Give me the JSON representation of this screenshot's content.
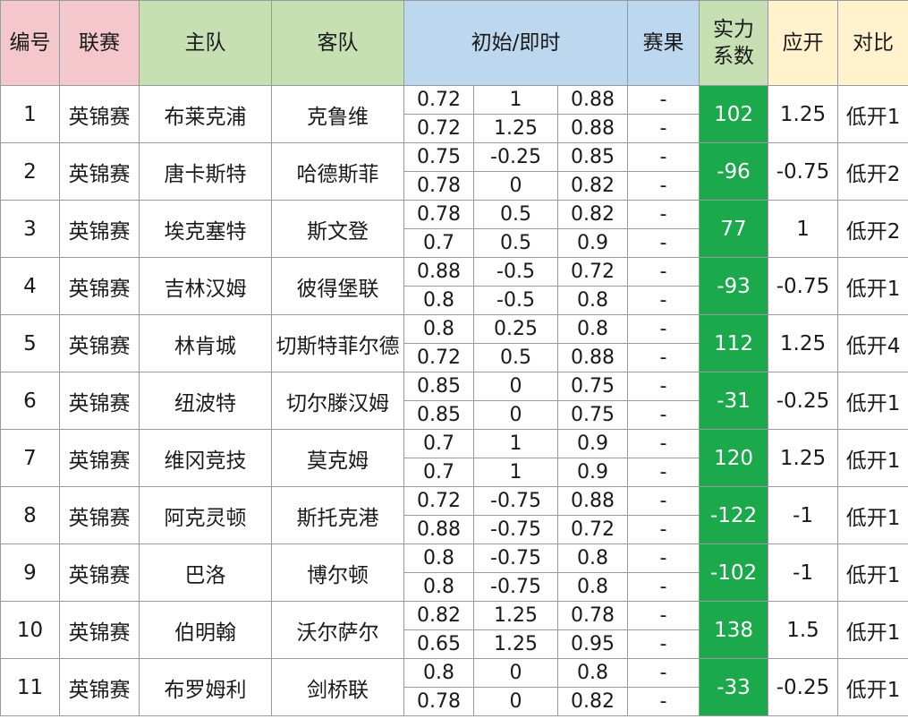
{
  "headers": {
    "id": "编号",
    "league": "联赛",
    "home": "主队",
    "away": "客队",
    "odds": "初始/即时",
    "result": "赛果",
    "strength_line1": "实力",
    "strength_line2": "系数",
    "expected": "应开",
    "compare": "对比"
  },
  "colors": {
    "header_pink": "#f4c7cc",
    "header_green": "#c6e0b4",
    "header_blue": "#bdd7ee",
    "header_cream": "#fff2cc",
    "strength_green": "#1ba94c"
  },
  "rows": [
    {
      "id": "1",
      "league": "英锦赛",
      "home": "布莱克浦",
      "away": "克鲁维",
      "initial": [
        "0.72",
        "1",
        "0.88"
      ],
      "live": [
        "0.72",
        "1.25",
        "0.88"
      ],
      "result": [
        "-",
        "-"
      ],
      "strength": "102",
      "expected": "1.25",
      "compare": "低开1"
    },
    {
      "id": "2",
      "league": "英锦赛",
      "home": "唐卡斯特",
      "away": "哈德斯菲",
      "initial": [
        "0.75",
        "-0.25",
        "0.85"
      ],
      "live": [
        "0.78",
        "0",
        "0.82"
      ],
      "result": [
        "-",
        "-"
      ],
      "strength": "-96",
      "expected": "-0.75",
      "compare": "低开2"
    },
    {
      "id": "3",
      "league": "英锦赛",
      "home": "埃克塞特",
      "away": "斯文登",
      "initial": [
        "0.78",
        "0.5",
        "0.82"
      ],
      "live": [
        "0.7",
        "0.5",
        "0.9"
      ],
      "result": [
        "-",
        "-"
      ],
      "strength": "77",
      "expected": "1",
      "compare": "低开2"
    },
    {
      "id": "4",
      "league": "英锦赛",
      "home": "吉林汉姆",
      "away": "彼得堡联",
      "initial": [
        "0.88",
        "-0.5",
        "0.72"
      ],
      "live": [
        "0.8",
        "-0.5",
        "0.8"
      ],
      "result": [
        "-",
        "-"
      ],
      "strength": "-93",
      "expected": "-0.75",
      "compare": "低开1"
    },
    {
      "id": "5",
      "league": "英锦赛",
      "home": "林肯城",
      "away": "切斯特菲尔德",
      "initial": [
        "0.8",
        "0.25",
        "0.8"
      ],
      "live": [
        "0.72",
        "0.5",
        "0.88"
      ],
      "result": [
        "-",
        "-"
      ],
      "strength": "112",
      "expected": "1.25",
      "compare": "低开4"
    },
    {
      "id": "6",
      "league": "英锦赛",
      "home": "纽波特",
      "away": "切尔滕汉姆",
      "initial": [
        "0.85",
        "0",
        "0.75"
      ],
      "live": [
        "0.85",
        "0",
        "0.75"
      ],
      "result": [
        "-",
        "-"
      ],
      "strength": "-31",
      "expected": "-0.25",
      "compare": "低开1"
    },
    {
      "id": "7",
      "league": "英锦赛",
      "home": "维冈竞技",
      "away": "莫克姆",
      "initial": [
        "0.7",
        "1",
        "0.9"
      ],
      "live": [
        "0.7",
        "1",
        "0.9"
      ],
      "result": [
        "-",
        "-"
      ],
      "strength": "120",
      "expected": "1.25",
      "compare": "低开1"
    },
    {
      "id": "8",
      "league": "英锦赛",
      "home": "阿克灵顿",
      "away": "斯托克港",
      "initial": [
        "0.72",
        "-0.75",
        "0.88"
      ],
      "live": [
        "0.88",
        "-0.75",
        "0.72"
      ],
      "result": [
        "-",
        "-"
      ],
      "strength": "-122",
      "expected": "-1",
      "compare": "低开1"
    },
    {
      "id": "9",
      "league": "英锦赛",
      "home": "巴洛",
      "away": "博尔顿",
      "initial": [
        "0.8",
        "-0.75",
        "0.8"
      ],
      "live": [
        "0.8",
        "-0.75",
        "0.8"
      ],
      "result": [
        "-",
        "-"
      ],
      "strength": "-102",
      "expected": "-1",
      "compare": "低开1"
    },
    {
      "id": "10",
      "league": "英锦赛",
      "home": "伯明翰",
      "away": "沃尔萨尔",
      "initial": [
        "0.82",
        "1.25",
        "0.78"
      ],
      "live": [
        "0.65",
        "1.25",
        "0.95"
      ],
      "result": [
        "-",
        "-"
      ],
      "strength": "138",
      "expected": "1.5",
      "compare": "低开1"
    },
    {
      "id": "11",
      "league": "英锦赛",
      "home": "布罗姆利",
      "away": "剑桥联",
      "initial": [
        "0.8",
        "0",
        "0.8"
      ],
      "live": [
        "0.78",
        "0",
        "0.82"
      ],
      "result": [
        "-",
        "-"
      ],
      "strength": "-33",
      "expected": "-0.25",
      "compare": "低开1"
    }
  ]
}
